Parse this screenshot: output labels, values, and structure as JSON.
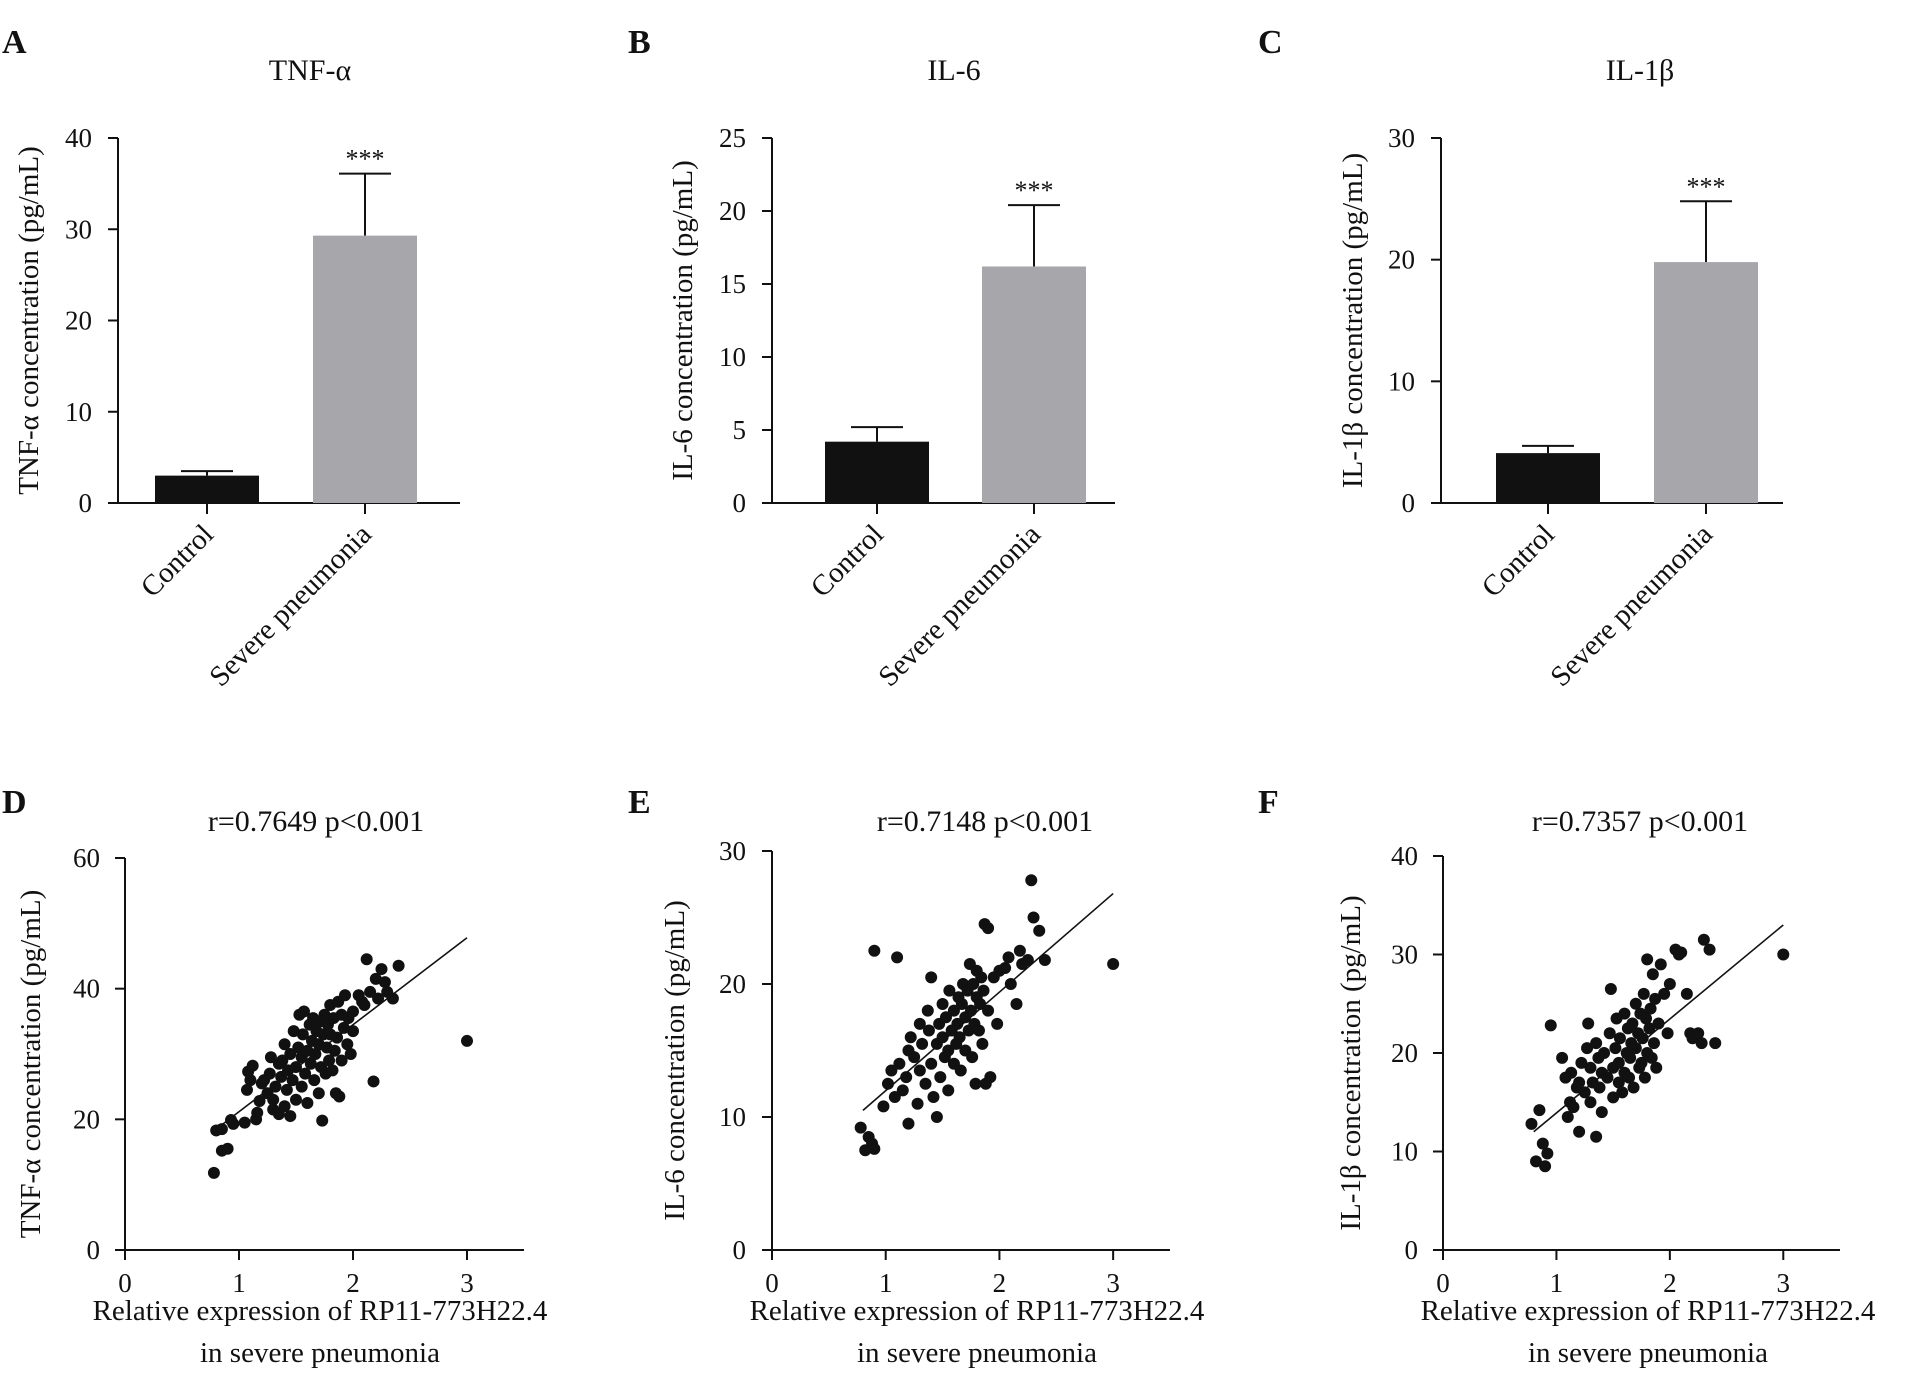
{
  "figure": {
    "colors": {
      "control_bar": "#111111",
      "severe_bar": "#a7a6ab",
      "points": "#111111",
      "axes": "#111111"
    }
  },
  "chart_data": [
    {
      "panel": "A",
      "type": "bar",
      "title": "TNF-α",
      "ylabel": "TNF-α concentration (pg/mL)",
      "xlabel": "",
      "categories": [
        "Control",
        "Severe pneumonia"
      ],
      "values": [
        3.0,
        29.3
      ],
      "error": [
        0.5,
        6.8
      ],
      "significance": [
        "",
        "***"
      ],
      "ylim": [
        0,
        40
      ],
      "yticks": [
        0,
        10,
        20,
        30,
        40
      ],
      "grid": false
    },
    {
      "panel": "B",
      "type": "bar",
      "title": "IL-6",
      "ylabel": "IL-6 concentration (pg/mL)",
      "xlabel": "",
      "categories": [
        "Control",
        "Severe pneumonia"
      ],
      "values": [
        4.2,
        16.2
      ],
      "error": [
        1.0,
        4.2
      ],
      "significance": [
        "",
        "***"
      ],
      "ylim": [
        0,
        25
      ],
      "yticks": [
        0,
        5,
        10,
        15,
        20,
        25
      ],
      "grid": false
    },
    {
      "panel": "C",
      "type": "bar",
      "title": "IL-1β",
      "ylabel": "IL-1β concentration (pg/mL)",
      "xlabel": "",
      "categories": [
        "Control",
        "Severe pneumonia"
      ],
      "values": [
        4.1,
        19.8
      ],
      "error": [
        0.6,
        5.0
      ],
      "significance": [
        "",
        "***"
      ],
      "ylim": [
        0,
        30
      ],
      "yticks": [
        0,
        10,
        20,
        30
      ],
      "grid": false
    },
    {
      "panel": "D",
      "type": "scatter",
      "title": "r=0.7649 p<0.001",
      "xlabel": "Relative expression of RP11-773H22.4\nin severe pneumonia",
      "ylabel": "TNF-α concentration (pg/mL)",
      "xlim": [
        0,
        3.5
      ],
      "ylim": [
        0,
        60
      ],
      "xticks": [
        0,
        1,
        2,
        3
      ],
      "yticks": [
        0,
        20,
        40,
        60
      ],
      "grid": false,
      "fit_line": {
        "x": [
          0.8,
          3.0
        ],
        "y": [
          18.5,
          47.8
        ]
      },
      "points": [
        [
          0.78,
          11.8
        ],
        [
          0.8,
          18.3
        ],
        [
          0.85,
          18.5
        ],
        [
          0.85,
          15.2
        ],
        [
          0.9,
          15.5
        ],
        [
          0.93,
          19.9
        ],
        [
          0.95,
          19.3
        ],
        [
          1.05,
          19.5
        ],
        [
          1.07,
          24.5
        ],
        [
          1.08,
          27.3
        ],
        [
          1.1,
          26.0
        ],
        [
          1.12,
          28.2
        ],
        [
          1.15,
          20.0
        ],
        [
          1.16,
          21.0
        ],
        [
          1.18,
          22.8
        ],
        [
          1.2,
          25.5
        ],
        [
          1.22,
          26.0
        ],
        [
          1.25,
          24.0
        ],
        [
          1.27,
          27.0
        ],
        [
          1.28,
          29.5
        ],
        [
          1.3,
          21.5
        ],
        [
          1.3,
          23.0
        ],
        [
          1.32,
          25.0
        ],
        [
          1.35,
          28.5
        ],
        [
          1.35,
          20.8
        ],
        [
          1.37,
          26.5
        ],
        [
          1.38,
          29.0
        ],
        [
          1.4,
          31.5
        ],
        [
          1.4,
          22.0
        ],
        [
          1.42,
          24.5
        ],
        [
          1.43,
          27.5
        ],
        [
          1.45,
          30.0
        ],
        [
          1.45,
          20.5
        ],
        [
          1.47,
          26.0
        ],
        [
          1.48,
          33.5
        ],
        [
          1.5,
          28.0
        ],
        [
          1.5,
          23.0
        ],
        [
          1.52,
          31.0
        ],
        [
          1.53,
          36.0
        ],
        [
          1.55,
          25.0
        ],
        [
          1.55,
          29.5
        ],
        [
          1.56,
          33.0
        ],
        [
          1.57,
          36.5
        ],
        [
          1.58,
          27.0
        ],
        [
          1.6,
          30.5
        ],
        [
          1.6,
          22.5
        ],
        [
          1.62,
          34.5
        ],
        [
          1.63,
          28.5
        ],
        [
          1.64,
          32.0
        ],
        [
          1.65,
          35.5
        ],
        [
          1.66,
          26.0
        ],
        [
          1.67,
          30.0
        ],
        [
          1.68,
          33.5
        ],
        [
          1.7,
          24.0
        ],
        [
          1.7,
          31.5
        ],
        [
          1.71,
          35.0
        ],
        [
          1.72,
          28.0
        ],
        [
          1.73,
          19.8
        ],
        [
          1.74,
          33.0
        ],
        [
          1.75,
          36.0
        ],
        [
          1.76,
          27.0
        ],
        [
          1.77,
          31.0
        ],
        [
          1.78,
          34.5
        ],
        [
          1.79,
          29.0
        ],
        [
          1.8,
          37.5
        ],
        [
          1.8,
          33.0
        ],
        [
          1.82,
          27.5
        ],
        [
          1.83,
          35.5
        ],
        [
          1.84,
          30.5
        ],
        [
          1.85,
          24.0
        ],
        [
          1.86,
          32.5
        ],
        [
          1.87,
          38.0
        ],
        [
          1.88,
          23.5
        ],
        [
          1.9,
          36.0
        ],
        [
          1.9,
          29.0
        ],
        [
          1.92,
          34.0
        ],
        [
          1.93,
          39.0
        ],
        [
          1.95,
          31.5
        ],
        [
          1.96,
          35.5
        ],
        [
          1.98,
          30.0
        ],
        [
          2.0,
          36.5
        ],
        [
          2.0,
          33.5
        ],
        [
          2.05,
          39.0
        ],
        [
          2.08,
          38.0
        ],
        [
          2.1,
          37.5
        ],
        [
          2.12,
          44.5
        ],
        [
          2.15,
          39.5
        ],
        [
          2.18,
          25.8
        ],
        [
          2.2,
          41.5
        ],
        [
          2.22,
          38.5
        ],
        [
          2.25,
          43.0
        ],
        [
          2.28,
          41.0
        ],
        [
          2.3,
          39.5
        ],
        [
          2.35,
          38.5
        ],
        [
          2.4,
          43.5
        ],
        [
          3.0,
          32.0
        ]
      ]
    },
    {
      "panel": "E",
      "type": "scatter",
      "title": "r=0.7148 p<0.001",
      "xlabel": "Relative expression of RP11-773H22.4\nin severe pneumonia",
      "ylabel": "IL-6 concentration (pg/mL)",
      "xlim": [
        0,
        3.5
      ],
      "ylim": [
        0,
        30
      ],
      "xticks": [
        0,
        1,
        2,
        3
      ],
      "yticks": [
        0,
        10,
        20,
        30
      ],
      "grid": false,
      "fit_line": {
        "x": [
          0.8,
          3.0
        ],
        "y": [
          10.5,
          26.8
        ]
      },
      "points": [
        [
          0.78,
          9.2
        ],
        [
          0.82,
          7.5
        ],
        [
          0.85,
          8.5
        ],
        [
          0.88,
          8.0
        ],
        [
          0.9,
          7.6
        ],
        [
          0.9,
          22.5
        ],
        [
          0.98,
          10.8
        ],
        [
          1.02,
          12.5
        ],
        [
          1.05,
          13.5
        ],
        [
          1.08,
          11.5
        ],
        [
          1.1,
          22.0
        ],
        [
          1.12,
          14.0
        ],
        [
          1.15,
          12.0
        ],
        [
          1.18,
          13.0
        ],
        [
          1.2,
          15.0
        ],
        [
          1.2,
          9.5
        ],
        [
          1.22,
          16.0
        ],
        [
          1.25,
          14.5
        ],
        [
          1.28,
          11.0
        ],
        [
          1.3,
          17.0
        ],
        [
          1.3,
          13.5
        ],
        [
          1.32,
          15.5
        ],
        [
          1.35,
          12.5
        ],
        [
          1.37,
          18.0
        ],
        [
          1.38,
          16.5
        ],
        [
          1.4,
          20.5
        ],
        [
          1.4,
          14.0
        ],
        [
          1.42,
          11.5
        ],
        [
          1.45,
          15.5
        ],
        [
          1.45,
          10.0
        ],
        [
          1.47,
          17.0
        ],
        [
          1.48,
          13.0
        ],
        [
          1.5,
          16.0
        ],
        [
          1.5,
          18.5
        ],
        [
          1.52,
          14.5
        ],
        [
          1.53,
          17.5
        ],
        [
          1.55,
          12.0
        ],
        [
          1.55,
          15.0
        ],
        [
          1.56,
          19.5
        ],
        [
          1.58,
          16.5
        ],
        [
          1.6,
          14.0
        ],
        [
          1.6,
          18.0
        ],
        [
          1.62,
          15.5
        ],
        [
          1.63,
          17.0
        ],
        [
          1.64,
          19.0
        ],
        [
          1.65,
          16.0
        ],
        [
          1.66,
          13.5
        ],
        [
          1.67,
          18.5
        ],
        [
          1.68,
          20.0
        ],
        [
          1.7,
          17.5
        ],
        [
          1.7,
          15.0
        ],
        [
          1.72,
          19.5
        ],
        [
          1.73,
          16.5
        ],
        [
          1.74,
          21.5
        ],
        [
          1.75,
          18.0
        ],
        [
          1.76,
          14.5
        ],
        [
          1.77,
          20.0
        ],
        [
          1.78,
          17.0
        ],
        [
          1.79,
          12.5
        ],
        [
          1.8,
          19.0
        ],
        [
          1.8,
          21.0
        ],
        [
          1.82,
          16.5
        ],
        [
          1.83,
          18.5
        ],
        [
          1.84,
          20.5
        ],
        [
          1.85,
          15.5
        ],
        [
          1.86,
          19.5
        ],
        [
          1.87,
          24.5
        ],
        [
          1.88,
          12.5
        ],
        [
          1.9,
          24.2
        ],
        [
          1.9,
          18.0
        ],
        [
          1.92,
          13.0
        ],
        [
          1.95,
          20.5
        ],
        [
          1.98,
          17.0
        ],
        [
          2.0,
          21.0
        ],
        [
          2.05,
          21.2
        ],
        [
          2.08,
          22.0
        ],
        [
          2.1,
          20.0
        ],
        [
          2.15,
          18.5
        ],
        [
          2.18,
          22.5
        ],
        [
          2.2,
          21.5
        ],
        [
          2.25,
          21.8
        ],
        [
          2.28,
          27.8
        ],
        [
          2.3,
          25.0
        ],
        [
          2.35,
          24.0
        ],
        [
          2.4,
          21.8
        ],
        [
          3.0,
          21.5
        ]
      ]
    },
    {
      "panel": "F",
      "type": "scatter",
      "title": "r=0.7357 p<0.001",
      "xlabel": "Relative expression of RP11-773H22.4\nin severe pneumonia",
      "ylabel": "IL-1β concentration (pg/mL)",
      "xlim": [
        0,
        3.5
      ],
      "ylim": [
        0,
        40
      ],
      "xticks": [
        0,
        1,
        2,
        3
      ],
      "yticks": [
        0,
        10,
        20,
        30,
        40
      ],
      "grid": false,
      "fit_line": {
        "x": [
          0.8,
          3.0
        ],
        "y": [
          12.0,
          33.0
        ]
      },
      "points": [
        [
          0.78,
          12.8
        ],
        [
          0.82,
          9.0
        ],
        [
          0.85,
          14.2
        ],
        [
          0.88,
          10.8
        ],
        [
          0.9,
          8.5
        ],
        [
          0.92,
          9.8
        ],
        [
          0.95,
          22.8
        ],
        [
          1.05,
          19.5
        ],
        [
          1.08,
          17.5
        ],
        [
          1.1,
          13.5
        ],
        [
          1.12,
          15.0
        ],
        [
          1.13,
          18.0
        ],
        [
          1.15,
          14.5
        ],
        [
          1.18,
          16.5
        ],
        [
          1.2,
          17.0
        ],
        [
          1.2,
          12.0
        ],
        [
          1.22,
          19.0
        ],
        [
          1.25,
          16.0
        ],
        [
          1.27,
          20.5
        ],
        [
          1.28,
          23.0
        ],
        [
          1.3,
          15.0
        ],
        [
          1.3,
          18.5
        ],
        [
          1.32,
          17.0
        ],
        [
          1.35,
          11.5
        ],
        [
          1.35,
          21.0
        ],
        [
          1.37,
          19.5
        ],
        [
          1.38,
          16.5
        ],
        [
          1.4,
          18.0
        ],
        [
          1.4,
          14.0
        ],
        [
          1.42,
          20.0
        ],
        [
          1.45,
          17.5
        ],
        [
          1.47,
          22.0
        ],
        [
          1.48,
          26.5
        ],
        [
          1.5,
          18.5
        ],
        [
          1.5,
          15.5
        ],
        [
          1.52,
          20.5
        ],
        [
          1.53,
          23.5
        ],
        [
          1.55,
          17.0
        ],
        [
          1.55,
          19.0
        ],
        [
          1.56,
          21.5
        ],
        [
          1.58,
          16.0
        ],
        [
          1.6,
          24.0
        ],
        [
          1.6,
          18.0
        ],
        [
          1.62,
          20.0
        ],
        [
          1.63,
          22.5
        ],
        [
          1.64,
          17.5
        ],
        [
          1.65,
          19.5
        ],
        [
          1.66,
          21.0
        ],
        [
          1.67,
          23.0
        ],
        [
          1.68,
          16.5
        ],
        [
          1.7,
          25.0
        ],
        [
          1.7,
          20.5
        ],
        [
          1.72,
          22.0
        ],
        [
          1.73,
          18.5
        ],
        [
          1.74,
          24.0
        ],
        [
          1.75,
          19.0
        ],
        [
          1.76,
          21.5
        ],
        [
          1.77,
          26.0
        ],
        [
          1.78,
          17.5
        ],
        [
          1.79,
          23.5
        ],
        [
          1.8,
          20.0
        ],
        [
          1.8,
          29.5
        ],
        [
          1.82,
          22.5
        ],
        [
          1.83,
          24.5
        ],
        [
          1.84,
          19.5
        ],
        [
          1.85,
          28.0
        ],
        [
          1.86,
          21.0
        ],
        [
          1.87,
          25.5
        ],
        [
          1.88,
          18.5
        ],
        [
          1.9,
          23.0
        ],
        [
          1.92,
          29.0
        ],
        [
          1.95,
          26.0
        ],
        [
          1.98,
          22.0
        ],
        [
          2.0,
          27.0
        ],
        [
          2.05,
          30.5
        ],
        [
          2.08,
          30.0
        ],
        [
          2.1,
          30.2
        ],
        [
          2.15,
          26.0
        ],
        [
          2.18,
          22.0
        ],
        [
          2.2,
          21.5
        ],
        [
          2.25,
          22.0
        ],
        [
          2.28,
          21.0
        ],
        [
          2.3,
          31.5
        ],
        [
          2.35,
          30.5
        ],
        [
          2.4,
          21.0
        ],
        [
          3.0,
          30.0
        ]
      ]
    }
  ]
}
